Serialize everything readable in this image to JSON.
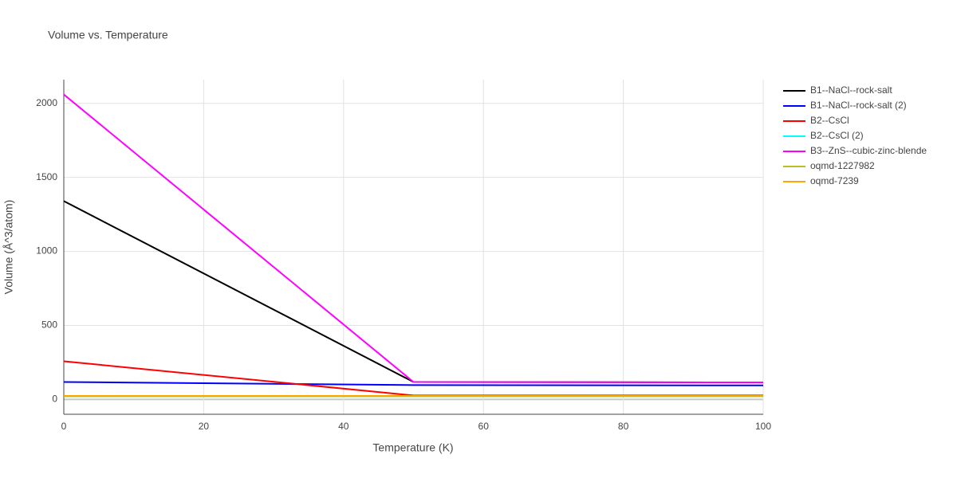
{
  "chart_data": {
    "type": "line",
    "title": "Volume vs. Temperature",
    "x_label": "Temperature (K)",
    "y_label": "Volume (Å^3/atom)",
    "x": [
      0,
      50,
      100
    ],
    "series": [
      {
        "name": "B1--NaCl--rock-salt",
        "color": "#000000",
        "values": [
          1340,
          118,
          115
        ]
      },
      {
        "name": "B1--NaCl--rock-salt (2)",
        "color": "#0000ff",
        "values": [
          118,
          97,
          95
        ]
      },
      {
        "name": "B2--CsCl",
        "color": "#ff0000",
        "values": [
          258,
          27,
          27
        ]
      },
      {
        "name": "B2--CsCl (2)",
        "color": "#00ffff",
        "values": [
          22,
          22,
          22
        ]
      },
      {
        "name": "B3--ZnS--cubic-zinc-blende",
        "color": "#ff00ff",
        "values": [
          2060,
          118,
          115
        ]
      },
      {
        "name": "oqmd-1227982",
        "color": "#bcbd22",
        "values": [
          22,
          22,
          22
        ]
      },
      {
        "name": "oqmd-7239",
        "color": "#ffa500",
        "values": [
          24,
          24,
          24
        ]
      }
    ],
    "xlim": [
      0,
      100
    ],
    "xticks": [
      0,
      20,
      40,
      60,
      80,
      100
    ],
    "ylim": [
      -100,
      2160
    ],
    "yticks": [
      0,
      500,
      1000,
      1500,
      2000
    ],
    "grid": true
  }
}
